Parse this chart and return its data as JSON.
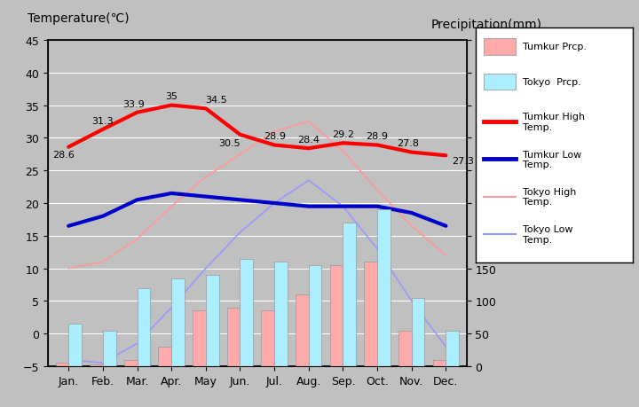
{
  "months": [
    "Jan.",
    "Feb.",
    "Mar.",
    "Apr.",
    "May",
    "Jun.",
    "Jul.",
    "Aug.",
    "Sep.",
    "Oct.",
    "Nov.",
    "Dec."
  ],
  "tumkur_high": [
    28.6,
    31.3,
    33.9,
    35.0,
    34.5,
    30.5,
    28.9,
    28.4,
    29.2,
    28.9,
    27.8,
    27.3
  ],
  "tumkur_low": [
    16.5,
    18.0,
    20.5,
    21.5,
    21.0,
    20.5,
    20.0,
    19.5,
    19.5,
    19.5,
    18.5,
    16.5
  ],
  "tokyo_high": [
    10.0,
    11.0,
    14.5,
    19.5,
    24.0,
    27.5,
    31.0,
    32.5,
    28.0,
    22.0,
    16.5,
    12.0
  ],
  "tokyo_low": [
    -4.0,
    -4.5,
    -1.5,
    4.0,
    10.0,
    15.5,
    20.0,
    23.5,
    19.5,
    13.0,
    5.0,
    -2.0
  ],
  "tumkur_precip_mm": [
    5,
    3,
    10,
    30,
    85,
    90,
    85,
    110,
    155,
    160,
    55,
    10
  ],
  "tokyo_precip_mm": [
    65,
    55,
    120,
    135,
    140,
    165,
    160,
    155,
    220,
    240,
    105,
    55
  ],
  "bg_color": "#c0c0c0",
  "plot_bg": "#c0c0c0",
  "tumkur_high_color": "#ff0000",
  "tumkur_low_color": "#0000cc",
  "tokyo_high_color": "#ff9999",
  "tokyo_low_color": "#9999ff",
  "tumkur_precip_color": "#ffaaaa",
  "tokyo_precip_color": "#aaeeff",
  "ylim_temp": [
    -5,
    45
  ],
  "ylim_precip": [
    0,
    500
  ],
  "title_left": "Temperature(℃)",
  "title_right": "Precipitation(mm)",
  "annotations": {
    "tumkur_high": [
      "28.6",
      "31.3",
      "33.9",
      "35",
      "34.5",
      "30.5",
      "28.9",
      "28.4",
      "29.2",
      "28.9",
      "27.8",
      "27.3"
    ]
  },
  "legend_items": [
    {
      "kind": "rect",
      "color": "#ffaaaa",
      "label": "Tumkur Prcp."
    },
    {
      "kind": "rect",
      "color": "#aaeeff",
      "label": "Tokyo  Prcp."
    },
    {
      "kind": "line_thick",
      "color": "#ff0000",
      "label": "Tumkur High\nTemp."
    },
    {
      "kind": "line_thick",
      "color": "#0000cc",
      "label": "Tumkur Low\nTemp."
    },
    {
      "kind": "line_thin",
      "color": "#ff9999",
      "label": "Tokyo High\nTemp."
    },
    {
      "kind": "line_thin",
      "color": "#9999ff",
      "label": "Tokyo Low\nTemp."
    }
  ]
}
